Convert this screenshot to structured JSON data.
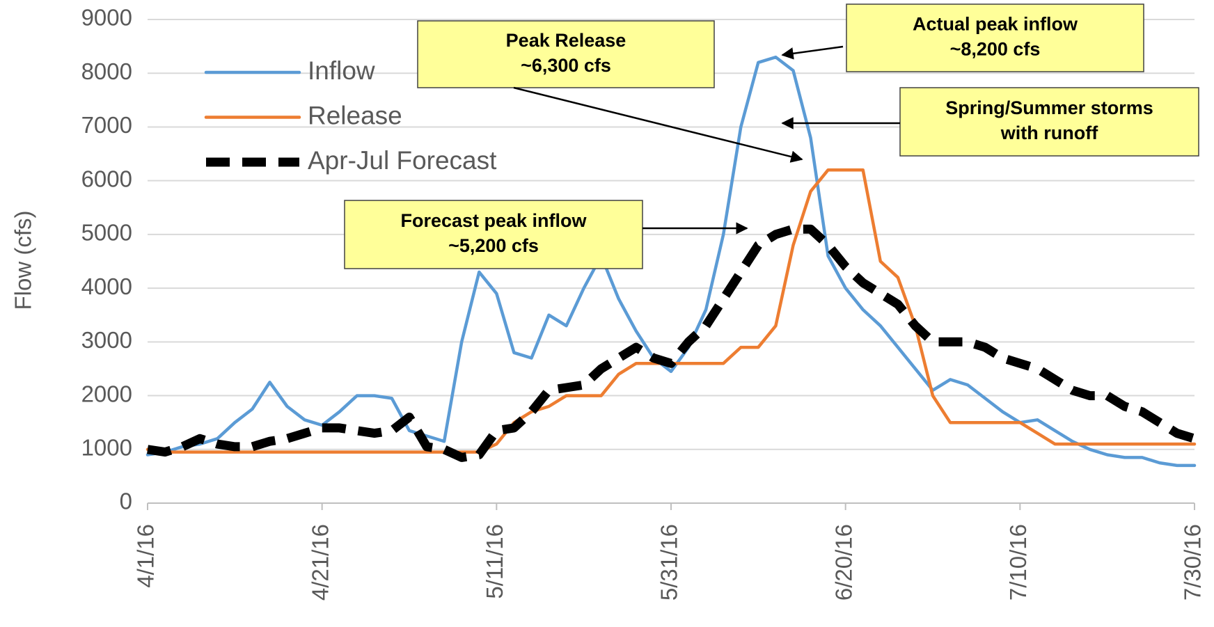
{
  "chart_data": {
    "type": "line",
    "y_label": "Flow (cfs)",
    "x": [
      "4/1/16",
      "4/3/16",
      "4/5/16",
      "4/7/16",
      "4/9/16",
      "4/11/16",
      "4/13/16",
      "4/15/16",
      "4/17/16",
      "4/19/16",
      "4/21/16",
      "4/23/16",
      "4/25/16",
      "4/27/16",
      "4/29/16",
      "5/1/16",
      "5/3/16",
      "5/5/16",
      "5/7/16",
      "5/9/16",
      "5/11/16",
      "5/13/16",
      "5/15/16",
      "5/17/16",
      "5/19/16",
      "5/21/16",
      "5/23/16",
      "5/25/16",
      "5/27/16",
      "5/29/16",
      "5/31/16",
      "6/2/16",
      "6/4/16",
      "6/6/16",
      "6/8/16",
      "6/10/16",
      "6/12/16",
      "6/14/16",
      "6/16/16",
      "6/18/16",
      "6/20/16",
      "6/22/16",
      "6/24/16",
      "6/26/16",
      "6/28/16",
      "6/30/16",
      "7/2/16",
      "7/4/16",
      "7/6/16",
      "7/8/16",
      "7/10/16",
      "7/12/16",
      "7/14/16",
      "7/16/16",
      "7/18/16",
      "7/20/16",
      "7/22/16",
      "7/24/16",
      "7/26/16",
      "7/28/16",
      "7/30/16"
    ],
    "series": [
      {
        "name": "Inflow",
        "color": "#5b9bd5",
        "dash": false,
        "values": [
          900,
          950,
          1050,
          1100,
          1200,
          1500,
          1750,
          2250,
          1800,
          1550,
          1450,
          1700,
          2000,
          2000,
          1950,
          1350,
          1250,
          1150,
          3000,
          4300,
          3900,
          2800,
          2700,
          3500,
          3300,
          4000,
          4600,
          3800,
          3200,
          2700,
          2450,
          2900,
          3600,
          5000,
          7000,
          8200,
          8300,
          8050,
          6800,
          4600,
          4000,
          3600,
          3300,
          2900,
          2500,
          2100,
          2300,
          2200,
          1950,
          1700,
          1500,
          1550,
          1350,
          1150,
          1000,
          900,
          850,
          850,
          750,
          700,
          700
        ]
      },
      {
        "name": "Release",
        "color": "#ed7d31",
        "dash": false,
        "values": [
          1000,
          950,
          950,
          950,
          950,
          950,
          950,
          950,
          950,
          950,
          950,
          950,
          950,
          950,
          950,
          950,
          950,
          950,
          950,
          950,
          1100,
          1500,
          1700,
          1800,
          2000,
          2000,
          2000,
          2400,
          2600,
          2600,
          2600,
          2600,
          2600,
          2600,
          2900,
          2900,
          3300,
          4800,
          5800,
          6200,
          6200,
          6200,
          4500,
          4200,
          3300,
          2000,
          1500,
          1500,
          1500,
          1500,
          1500,
          1300,
          1100,
          1100,
          1100,
          1100,
          1100,
          1100,
          1100,
          1100,
          1100
        ]
      },
      {
        "name": "Apr-Jul Forecast",
        "color": "#000000",
        "dash": true,
        "values": [
          1000,
          950,
          1050,
          1200,
          1100,
          1050,
          1050,
          1150,
          1200,
          1300,
          1400,
          1400,
          1350,
          1300,
          1350,
          1600,
          1050,
          1000,
          850,
          900,
          1350,
          1400,
          1700,
          2100,
          2150,
          2200,
          2500,
          2700,
          2900,
          2700,
          2600,
          3000,
          3300,
          3800,
          4300,
          4800,
          5000,
          5100,
          5100,
          4800,
          4400,
          4100,
          3900,
          3700,
          3300,
          3000,
          3000,
          3000,
          2900,
          2700,
          2600,
          2500,
          2300,
          2100,
          2000,
          2000,
          1800,
          1700,
          1500,
          1300,
          1200
        ]
      }
    ],
    "xlim": [
      "4/1/16",
      "7/30/16"
    ],
    "xticks": [
      "4/1/16",
      "4/21/16",
      "5/11/16",
      "5/31/16",
      "6/20/16",
      "7/10/16",
      "7/30/16"
    ],
    "ylim": [
      0,
      9000
    ],
    "yticks": [
      0,
      1000,
      2000,
      3000,
      4000,
      5000,
      6000,
      7000,
      8000,
      9000
    ],
    "grid": true,
    "legend": "upper left",
    "annotations": [
      {
        "lines": [
          "Peak Release",
          "~6,300 cfs"
        ]
      },
      {
        "lines": [
          "Actual peak inflow",
          "~8,200 cfs"
        ]
      },
      {
        "lines": [
          "Spring/Summer storms",
          "with runoff"
        ]
      },
      {
        "lines": [
          "Forecast peak inflow",
          "~5,200 cfs"
        ]
      }
    ]
  }
}
